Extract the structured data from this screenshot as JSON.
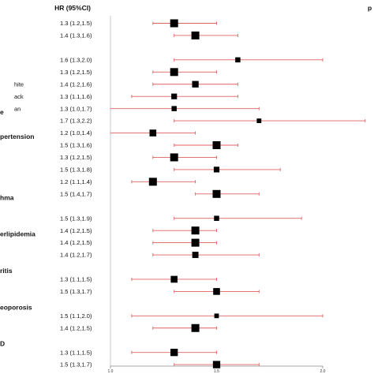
{
  "header": {
    "hr_column_title": "HR (95%CI)",
    "p_column_title": "p"
  },
  "categories": [
    {
      "row": 8,
      "label": "e"
    },
    {
      "row": 10,
      "label": "pertension"
    },
    {
      "row": 15,
      "label": "hma"
    },
    {
      "row": 18,
      "label": "erlipidemia"
    },
    {
      "row": 21,
      "label": "ritis"
    },
    {
      "row": 24,
      "label": "eoporosis"
    },
    {
      "row": 27,
      "label": "D"
    }
  ],
  "subgroups": [
    {
      "row": 5,
      "label": "hite"
    },
    {
      "row": 6,
      "label": "ack"
    },
    {
      "row": 7,
      "label": "an"
    }
  ],
  "colors": {
    "ci_line": "#e06060",
    "marker": "#000000",
    "axis": "#888888",
    "reference_line": "#bbbbbb"
  },
  "chart_data": {
    "type": "forest",
    "title": "",
    "xlabel": "",
    "xlim": [
      1.0,
      2.0
    ],
    "x_ticks": [
      1.0,
      1.5,
      2.0
    ],
    "tick_labels": [
      "1.0",
      "1.5",
      "2.0"
    ],
    "reference_line": 1.0,
    "rows": [
      {
        "row": 0,
        "hr": 1.3,
        "lower": 1.2,
        "upper": 1.5,
        "label": "1.3 (1.2,1.5)",
        "weight": 1.0
      },
      {
        "row": 1,
        "hr": 1.4,
        "lower": 1.3,
        "upper": 1.6,
        "label": "1.4 (1.3,1.6)",
        "weight": 1.0
      },
      {
        "row": 3,
        "hr": 1.6,
        "lower": 1.3,
        "upper": 2.0,
        "label": "1.6 (1.3,2.0)",
        "weight": 0.5
      },
      {
        "row": 4,
        "hr": 1.3,
        "lower": 1.2,
        "upper": 1.5,
        "label": "1.3 (1.2,1.5)",
        "weight": 1.0
      },
      {
        "row": 5,
        "hr": 1.4,
        "lower": 1.2,
        "upper": 1.6,
        "label": "1.4 (1.2,1.6)",
        "weight": 0.75
      },
      {
        "row": 6,
        "hr": 1.3,
        "lower": 1.1,
        "upper": 1.6,
        "label": "1.3 (1.1,1.6)",
        "weight": 0.6
      },
      {
        "row": 7,
        "hr": 1.3,
        "lower": 1.0,
        "upper": 1.7,
        "label": "1.3 (1.0,1.7)",
        "weight": 0.5
      },
      {
        "row": 8,
        "hr": 1.7,
        "lower": 1.3,
        "upper": 2.2,
        "label": "1.7 (1.3,2.2)",
        "weight": 0.4
      },
      {
        "row": 9,
        "hr": 1.2,
        "lower": 1.0,
        "upper": 1.4,
        "label": "1.2 (1.0,1.4)",
        "weight": 0.8
      },
      {
        "row": 10,
        "hr": 1.5,
        "lower": 1.3,
        "upper": 1.6,
        "label": "1.5 (1.3,1.6)",
        "weight": 1.0
      },
      {
        "row": 11,
        "hr": 1.3,
        "lower": 1.2,
        "upper": 1.5,
        "label": "1.3 (1.2,1.5)",
        "weight": 1.0
      },
      {
        "row": 12,
        "hr": 1.5,
        "lower": 1.3,
        "upper": 1.8,
        "label": "1.5 (1.3,1.8)",
        "weight": 0.6
      },
      {
        "row": 13,
        "hr": 1.2,
        "lower": 1.1,
        "upper": 1.4,
        "label": "1.2 (1.1,1.4)",
        "weight": 1.0
      },
      {
        "row": 14,
        "hr": 1.5,
        "lower": 1.4,
        "upper": 1.7,
        "label": "1.5 (1.4,1.7)",
        "weight": 1.0
      },
      {
        "row": 16,
        "hr": 1.5,
        "lower": 1.3,
        "upper": 1.9,
        "label": "1.5 (1.3,1.9)",
        "weight": 0.5
      },
      {
        "row": 17,
        "hr": 1.4,
        "lower": 1.2,
        "upper": 1.5,
        "label": "1.4 (1.2,1.5)",
        "weight": 1.0
      },
      {
        "row": 18,
        "hr": 1.4,
        "lower": 1.2,
        "upper": 1.5,
        "label": "1.4 (1.2,1.5)",
        "weight": 1.0
      },
      {
        "row": 19,
        "hr": 1.4,
        "lower": 1.2,
        "upper": 1.7,
        "label": "1.4 (1.2,1.7)",
        "weight": 0.7
      },
      {
        "row": 21,
        "hr": 1.3,
        "lower": 1.1,
        "upper": 1.5,
        "label": "1.3 (1.1,1.5)",
        "weight": 0.8
      },
      {
        "row": 22,
        "hr": 1.5,
        "lower": 1.3,
        "upper": 1.7,
        "label": "1.5 (1.3,1.7)",
        "weight": 0.8
      },
      {
        "row": 24,
        "hr": 1.5,
        "lower": 1.1,
        "upper": 2.0,
        "label": "1.5 (1.1,2.0)",
        "weight": 0.4
      },
      {
        "row": 25,
        "hr": 1.4,
        "lower": 1.2,
        "upper": 1.5,
        "label": "1.4 (1.2,1.5)",
        "weight": 1.0
      },
      {
        "row": 27,
        "hr": 1.3,
        "lower": 1.1,
        "upper": 1.5,
        "label": "1.3 (1.1,1.5)",
        "weight": 0.9
      },
      {
        "row": 28,
        "hr": 1.5,
        "lower": 1.3,
        "upper": 1.7,
        "label": "1.5 (1.3,1.7)",
        "weight": 0.9
      }
    ]
  }
}
